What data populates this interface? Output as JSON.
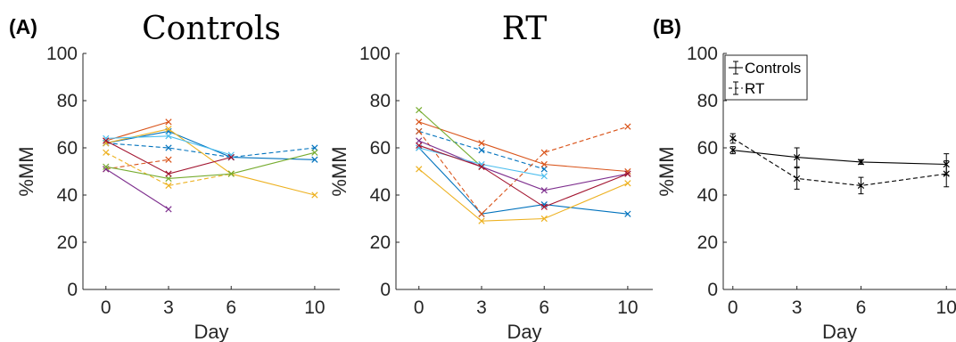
{
  "panel_labels": [
    "(A)",
    "(B)"
  ],
  "chart_data": [
    {
      "type": "line",
      "title": "Controls",
      "xlabel": "Day",
      "ylabel": "%MM",
      "x_ticks": [
        0,
        3,
        6,
        10
      ],
      "y_ticks": [
        0,
        20,
        40,
        60,
        80,
        100
      ],
      "xlim": [
        -1.1,
        11.2
      ],
      "ylim": [
        0,
        100
      ],
      "grid": false,
      "series": [
        {
          "color": "#0072BD",
          "dashed": false,
          "x": [
            0,
            3,
            6,
            10
          ],
          "y": [
            62,
            67,
            56,
            55
          ]
        },
        {
          "color": "#0072BD",
          "dashed": true,
          "x": [
            0,
            3,
            6,
            10
          ],
          "y": [
            62,
            60,
            56,
            60
          ]
        },
        {
          "color": "#D95319",
          "dashed": false,
          "x": [
            0,
            3
          ],
          "y": [
            63,
            71
          ]
        },
        {
          "color": "#D95319",
          "dashed": true,
          "x": [
            0,
            3
          ],
          "y": [
            51,
            55
          ]
        },
        {
          "color": "#EDB120",
          "dashed": false,
          "x": [
            0,
            3,
            6,
            10
          ],
          "y": [
            62,
            68,
            49,
            40
          ]
        },
        {
          "color": "#EDB120",
          "dashed": true,
          "x": [
            0,
            3,
            6
          ],
          "y": [
            58,
            44,
            49
          ]
        },
        {
          "color": "#7E2F8E",
          "dashed": false,
          "x": [
            0,
            3
          ],
          "y": [
            51,
            34
          ]
        },
        {
          "color": "#77AC30",
          "dashed": false,
          "x": [
            0,
            3,
            6,
            10
          ],
          "y": [
            52,
            47,
            49,
            58
          ]
        },
        {
          "color": "#4DBEEE",
          "dashed": false,
          "x": [
            0,
            3,
            6
          ],
          "y": [
            64,
            65,
            57
          ]
        },
        {
          "color": "#A2142F",
          "dashed": false,
          "x": [
            0,
            3,
            6
          ],
          "y": [
            63,
            49,
            56
          ]
        }
      ]
    },
    {
      "type": "line",
      "title": "RT",
      "xlabel": "Day",
      "ylabel": "%MM",
      "x_ticks": [
        0,
        3,
        6,
        10
      ],
      "y_ticks": [
        0,
        20,
        40,
        60,
        80,
        100
      ],
      "xlim": [
        -1.1,
        11.2
      ],
      "ylim": [
        0,
        100
      ],
      "grid": false,
      "series": [
        {
          "color": "#0072BD",
          "dashed": false,
          "x": [
            0,
            3,
            6,
            10
          ],
          "y": [
            60,
            32,
            36,
            32
          ]
        },
        {
          "color": "#0072BD",
          "dashed": true,
          "x": [
            0,
            3,
            6
          ],
          "y": [
            67,
            59,
            51
          ]
        },
        {
          "color": "#D95319",
          "dashed": false,
          "x": [
            0,
            3,
            6,
            10
          ],
          "y": [
            71,
            62,
            53,
            50
          ]
        },
        {
          "color": "#D95319",
          "dashed": true,
          "x": [
            0,
            3,
            6,
            10
          ],
          "y": [
            67,
            32,
            58,
            69
          ]
        },
        {
          "color": "#EDB120",
          "dashed": false,
          "x": [
            0,
            3,
            6,
            10
          ],
          "y": [
            51,
            29,
            30,
            45
          ]
        },
        {
          "color": "#7E2F8E",
          "dashed": false,
          "x": [
            0,
            3,
            6,
            10
          ],
          "y": [
            63,
            52,
            42,
            49
          ]
        },
        {
          "color": "#77AC30",
          "dashed": false,
          "x": [
            0,
            3
          ],
          "y": [
            76,
            52
          ]
        },
        {
          "color": "#4DBEEE",
          "dashed": false,
          "x": [
            0,
            3,
            6
          ],
          "y": [
            60,
            53,
            48
          ]
        },
        {
          "color": "#A2142F",
          "dashed": false,
          "x": [
            0,
            3,
            6,
            10
          ],
          "y": [
            61,
            52,
            35,
            49
          ]
        }
      ]
    },
    {
      "type": "line",
      "title": "",
      "xlabel": "Day",
      "ylabel": "%MM",
      "x_ticks": [
        0,
        3,
        6,
        10
      ],
      "y_ticks": [
        0,
        20,
        40,
        60,
        80,
        100
      ],
      "xlim": [
        -0.45,
        10.45
      ],
      "ylim": [
        0,
        100
      ],
      "grid": false,
      "legend": {
        "placement": "top-left",
        "entries": [
          "Controls",
          "RT"
        ]
      },
      "series": [
        {
          "name": "Controls",
          "color": "#000000",
          "dashed": false,
          "x": [
            0,
            3,
            6,
            10
          ],
          "y": [
            59,
            56,
            54,
            53
          ],
          "err": [
            1.5,
            4,
            1,
            4.5
          ]
        },
        {
          "name": "RT",
          "color": "#000000",
          "dashed": true,
          "x": [
            0,
            3,
            6,
            10
          ],
          "y": [
            64,
            47,
            44,
            49
          ],
          "err": [
            2,
            4.5,
            3.5,
            5.5
          ]
        }
      ]
    }
  ]
}
